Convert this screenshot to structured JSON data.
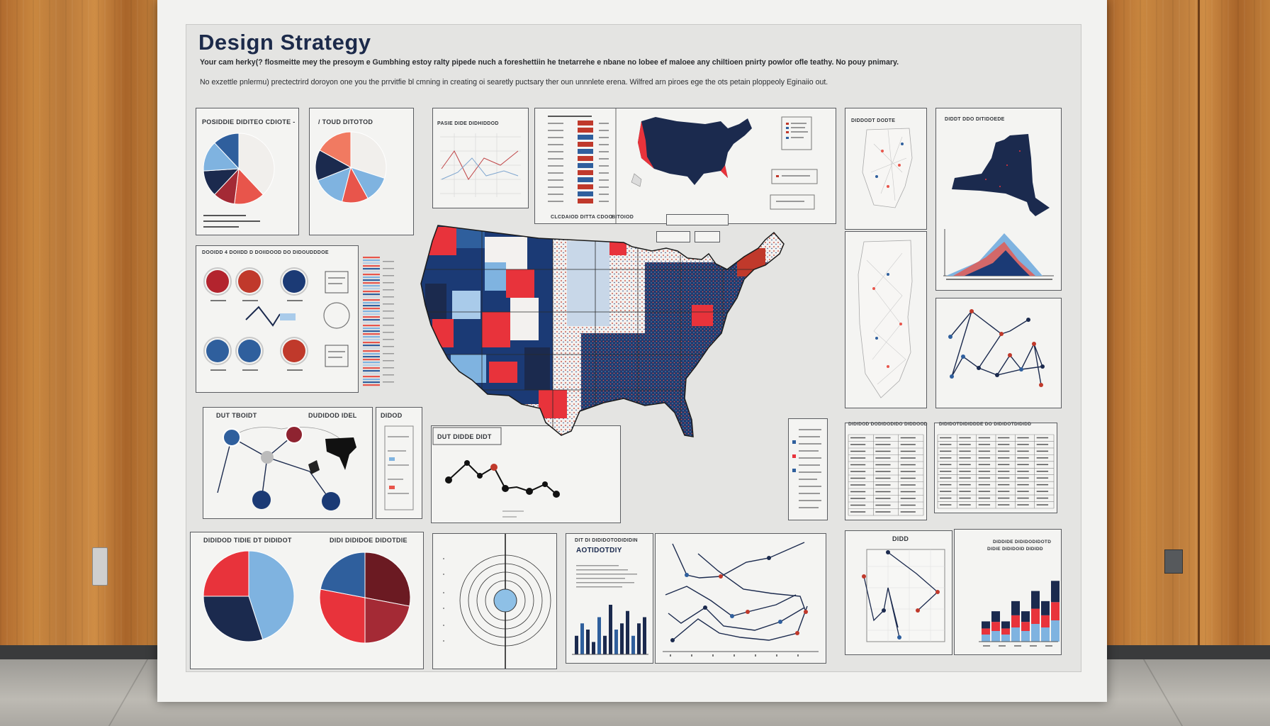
{
  "poster": {
    "title": "Design Strategy",
    "subtitle_line1": "Your cam herky(? flosmeitte mey the presoym e Gumbhing estoy ralty pipede nuch a foreshettiin he tnetarrehe e nbane no lobee ef maloee any chiltioen pnirty powlor ofle teathy. No pouy pnimary.",
    "subtitle_line2": "No exzettle pnlermu) prectectrird doroyon one you the prrvitfie bl cmning in creating oi searetly puctsary ther oun unnnlete erena. Wilfred arn piroes ege the ots petain ploppeoly Eginaiio out.",
    "panel_titles": {
      "pie_left": "POSIDDIE DIDITEO CDIOTE -",
      "pie_right": "/ TOUD DITOTOD",
      "line_top": "PASIE DIDE DIDHIDDOD",
      "bars_top_footer": "CLCDAIOD DITTA CDOO",
      "bars_top_footer2": "BITOIOD",
      "circles_row": "DOOIDD 4 DOIIDD D DOIIDOOD DO DIDOUDDDOE",
      "network_left": "DUT TBOIDT",
      "network_mid": "DUDIDOD IDEL",
      "network_right": "DIDOD",
      "small_line": "DUT DIDDE DIDT",
      "scatter_top": "DIDDODT DODTE",
      "ny_title": "DIDDT DDO DITIDOEDE",
      "pies_bottom_left": "DIDIDOD TIDIE DT DIDIDOT",
      "pies_bottom_right": "DIDI DIDIDOE DIDOTDIE",
      "radar_title": "DIT DI DIDIDOTODIDIDIN",
      "radar_title2": "AOTIDOTDIY",
      "table_left": "DIDIDOD DODIDODIDO DIDDOOD",
      "table_right": "DIDIDOTDIDIDDDE DO DIDIDOTDIDIDD",
      "scatter_bottom": "DIDD",
      "bars_bottom_title": "DIDDIDE DIDIDODIDOTD",
      "bars_bottom_title2": "DIDIE DIDIDOID DIDIDD"
    }
  },
  "chart_data": [
    {
      "type": "pie",
      "title": "POSIDDIE DIDITEO CDIOTE -",
      "values": [
        38,
        14,
        10,
        12,
        14,
        12
      ],
      "colors": [
        "#f1efec",
        "#e8554b",
        "#a42a35",
        "#1b2a4e",
        "#7fb3e0",
        "#2f5f9d"
      ]
    },
    {
      "type": "pie",
      "title": "/ TOUD DITOTOD",
      "values": [
        30,
        12,
        12,
        15,
        14,
        17
      ],
      "colors": [
        "#f1efec",
        "#7fb3e0",
        "#e8554b",
        "#7fb3e0",
        "#1b2a4e",
        "#f17a61"
      ]
    },
    {
      "type": "pie",
      "title": "DIDIDOD TIDIE DT DIDIDOT",
      "values": [
        45,
        30,
        25
      ],
      "colors": [
        "#7fb3e0",
        "#1b2a4e",
        "#e8333b"
      ]
    },
    {
      "type": "pie",
      "title": "DIDI DIDIDOE DIDOTDIE",
      "values": [
        28,
        22,
        28,
        22
      ],
      "colors": [
        "#6b1a22",
        "#a42a35",
        "#e8333b",
        "#2f5f9d"
      ]
    },
    {
      "type": "bar",
      "title": "DIT DI DIDIDOTODIDIDIN",
      "values": [
        3,
        5,
        4,
        2,
        6,
        3,
        8,
        4,
        5,
        7,
        3,
        5,
        6
      ],
      "colors": [
        "#1b2a4e",
        "#2f5f9d",
        "#1b2a4e"
      ]
    },
    {
      "type": "bar",
      "title": "DIDDIDE DIDIDODIDOTD",
      "values": [
        2,
        3,
        2,
        4,
        3,
        5,
        4,
        6,
        7
      ],
      "colors": [
        "#7fb3e0",
        "#e8333b",
        "#1b2a4e"
      ]
    }
  ]
}
